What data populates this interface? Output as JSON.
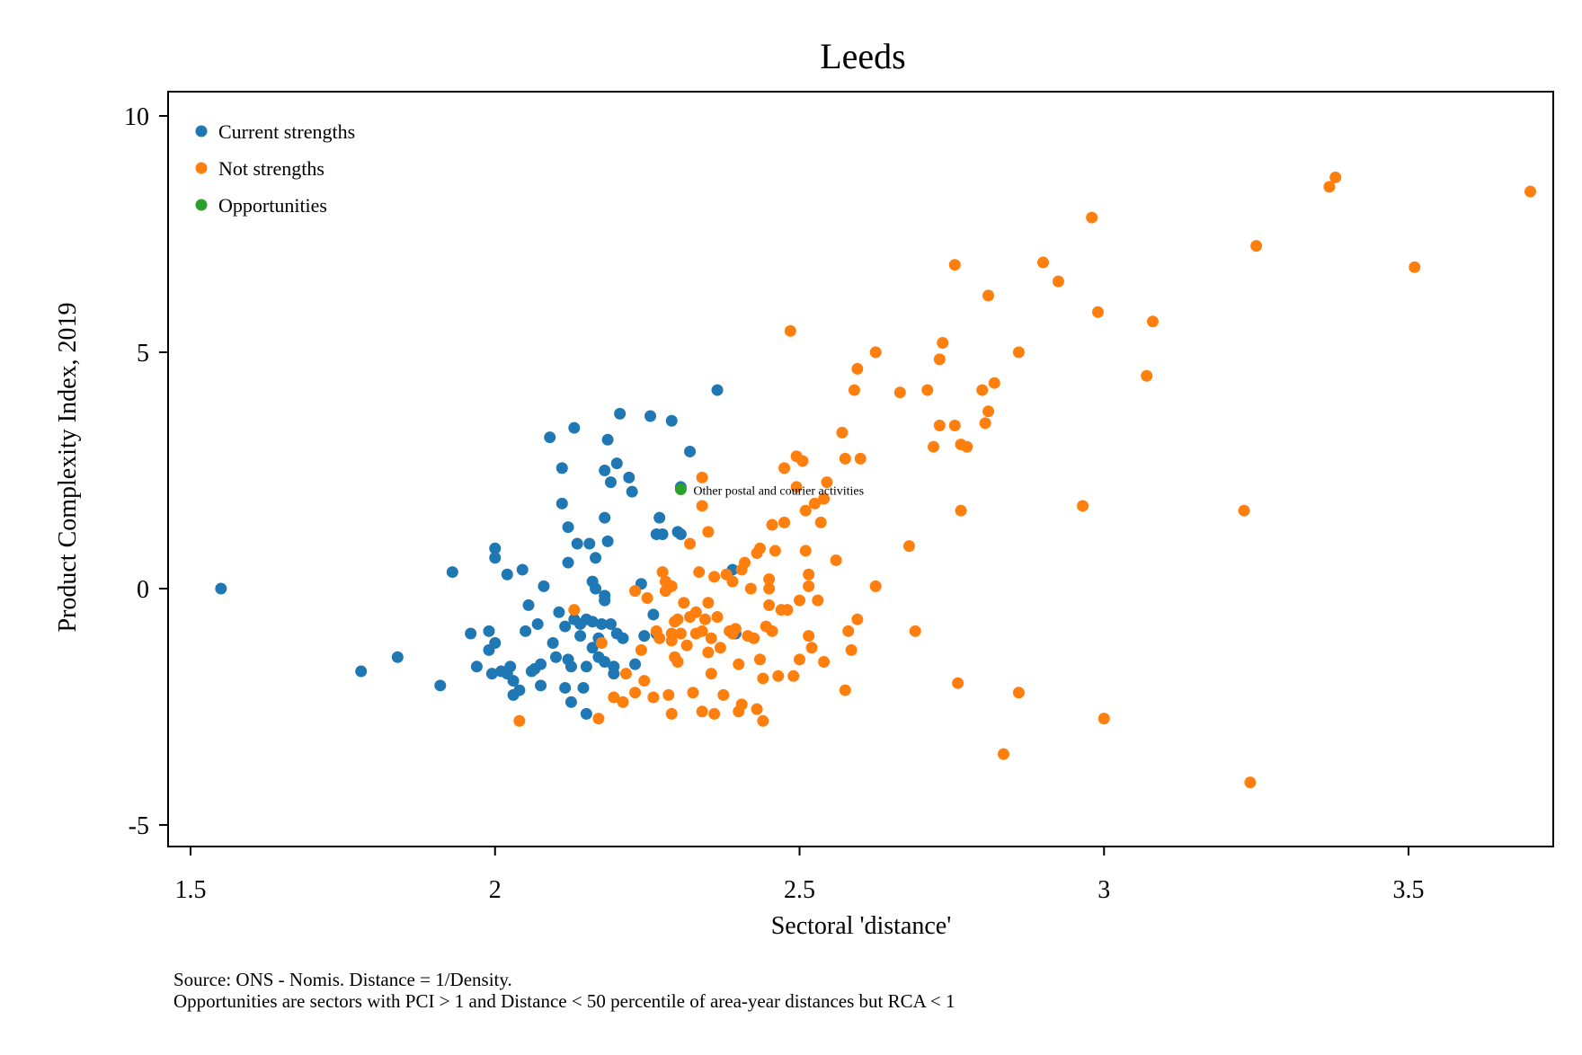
{
  "chart_data": {
    "type": "scatter",
    "title": "Leeds",
    "xlabel": "Sectoral 'distance'",
    "ylabel": "Product Complexity Index, 2019",
    "xlim": [
      1.43,
      3.72
    ],
    "ylim": [
      -5.5,
      10.5
    ],
    "xticks": [
      1.5,
      2,
      2.5,
      3,
      3.5
    ],
    "xtick_labels": [
      "1.5",
      "2",
      "2.5",
      "3",
      "3.5"
    ],
    "yticks": [
      -5,
      0,
      5,
      10
    ],
    "ytick_labels": [
      "-5",
      "0",
      "5",
      "10"
    ],
    "grid": false,
    "legend_position": "top-left",
    "annotation": {
      "text": "Other postal and courier activities",
      "x": 2.305,
      "y": 2.1
    },
    "series": [
      {
        "name": "Current strengths",
        "color": "#1f77b4",
        "points": [
          [
            1.55,
            0.0
          ],
          [
            1.78,
            -1.75
          ],
          [
            1.84,
            -1.45
          ],
          [
            1.91,
            -2.05
          ],
          [
            1.93,
            0.35
          ],
          [
            1.96,
            -0.95
          ],
          [
            1.97,
            -1.65
          ],
          [
            1.99,
            -0.9
          ],
          [
            1.99,
            -1.3
          ],
          [
            1.995,
            -1.8
          ],
          [
            2.0,
            0.85
          ],
          [
            2.0,
            0.65
          ],
          [
            2.0,
            -1.15
          ],
          [
            2.01,
            -1.75
          ],
          [
            2.02,
            0.3
          ],
          [
            2.02,
            -1.8
          ],
          [
            2.025,
            -1.65
          ],
          [
            2.03,
            -1.95
          ],
          [
            2.03,
            -2.25
          ],
          [
            2.04,
            -2.15
          ],
          [
            2.045,
            0.4
          ],
          [
            2.05,
            -0.9
          ],
          [
            2.055,
            -0.35
          ],
          [
            2.06,
            -1.75
          ],
          [
            2.065,
            -1.7
          ],
          [
            2.07,
            -0.75
          ],
          [
            2.075,
            -1.6
          ],
          [
            2.075,
            -2.05
          ],
          [
            2.08,
            0.05
          ],
          [
            2.09,
            3.2
          ],
          [
            2.095,
            -1.15
          ],
          [
            2.1,
            -1.45
          ],
          [
            2.105,
            -0.5
          ],
          [
            2.11,
            2.55
          ],
          [
            2.11,
            1.8
          ],
          [
            2.115,
            -0.8
          ],
          [
            2.115,
            -2.1
          ],
          [
            2.12,
            0.55
          ],
          [
            2.12,
            1.3
          ],
          [
            2.12,
            -1.5
          ],
          [
            2.125,
            -1.65
          ],
          [
            2.125,
            -2.4
          ],
          [
            2.13,
            3.4
          ],
          [
            2.13,
            -0.65
          ],
          [
            2.135,
            0.95
          ],
          [
            2.14,
            -0.75
          ],
          [
            2.14,
            -1.0
          ],
          [
            2.145,
            -2.1
          ],
          [
            2.15,
            -0.65
          ],
          [
            2.15,
            -1.65
          ],
          [
            2.15,
            -2.65
          ],
          [
            2.155,
            0.95
          ],
          [
            2.16,
            0.15
          ],
          [
            2.16,
            -0.7
          ],
          [
            2.16,
            -1.25
          ],
          [
            2.165,
            0.0
          ],
          [
            2.165,
            0.65
          ],
          [
            2.17,
            -1.05
          ],
          [
            2.17,
            -1.45
          ],
          [
            2.175,
            -0.75
          ],
          [
            2.18,
            1.5
          ],
          [
            2.18,
            -0.15
          ],
          [
            2.18,
            -0.25
          ],
          [
            2.18,
            -1.55
          ],
          [
            2.18,
            2.5
          ],
          [
            2.185,
            1.0
          ],
          [
            2.185,
            3.15
          ],
          [
            2.19,
            2.25
          ],
          [
            2.19,
            -0.75
          ],
          [
            2.195,
            -1.65
          ],
          [
            2.195,
            -1.8
          ],
          [
            2.2,
            2.65
          ],
          [
            2.2,
            -0.95
          ],
          [
            2.205,
            3.7
          ],
          [
            2.21,
            -1.05
          ],
          [
            2.22,
            2.35
          ],
          [
            2.225,
            2.05
          ],
          [
            2.23,
            -1.6
          ],
          [
            2.24,
            0.1
          ],
          [
            2.245,
            -1.0
          ],
          [
            2.255,
            3.65
          ],
          [
            2.26,
            -0.55
          ],
          [
            2.265,
            -0.95
          ],
          [
            2.265,
            1.15
          ],
          [
            2.27,
            1.5
          ],
          [
            2.275,
            1.15
          ],
          [
            2.29,
            3.55
          ],
          [
            2.3,
            1.2
          ],
          [
            2.305,
            1.15
          ],
          [
            2.305,
            2.15
          ],
          [
            2.32,
            2.9
          ],
          [
            2.365,
            4.2
          ],
          [
            2.39,
            0.4
          ],
          [
            2.395,
            -0.95
          ]
        ]
      },
      {
        "name": "Not strengths",
        "color": "#ff7f0e",
        "points": [
          [
            2.04,
            -2.8
          ],
          [
            2.13,
            -0.45
          ],
          [
            2.17,
            -2.75
          ],
          [
            2.175,
            -1.15
          ],
          [
            2.195,
            -2.3
          ],
          [
            2.21,
            -2.4
          ],
          [
            2.215,
            -1.8
          ],
          [
            2.23,
            -0.05
          ],
          [
            2.23,
            -2.2
          ],
          [
            2.24,
            -1.3
          ],
          [
            2.245,
            -1.95
          ],
          [
            2.25,
            -0.2
          ],
          [
            2.26,
            -2.3
          ],
          [
            2.265,
            -0.9
          ],
          [
            2.27,
            -1.05
          ],
          [
            2.275,
            0.35
          ],
          [
            2.28,
            0.15
          ],
          [
            2.28,
            -0.05
          ],
          [
            2.285,
            -2.25
          ],
          [
            2.29,
            0.05
          ],
          [
            2.29,
            -0.95
          ],
          [
            2.29,
            -1.1
          ],
          [
            2.29,
            -2.65
          ],
          [
            2.295,
            -0.7
          ],
          [
            2.295,
            -1.45
          ],
          [
            2.3,
            -1.55
          ],
          [
            2.3,
            -0.65
          ],
          [
            2.305,
            -0.95
          ],
          [
            2.31,
            -0.3
          ],
          [
            2.315,
            -1.2
          ],
          [
            2.32,
            0.95
          ],
          [
            2.32,
            -0.6
          ],
          [
            2.325,
            -2.2
          ],
          [
            2.33,
            -0.5
          ],
          [
            2.33,
            -0.95
          ],
          [
            2.335,
            0.35
          ],
          [
            2.34,
            2.35
          ],
          [
            2.34,
            1.75
          ],
          [
            2.34,
            -0.9
          ],
          [
            2.34,
            -2.6
          ],
          [
            2.345,
            -0.65
          ],
          [
            2.35,
            1.2
          ],
          [
            2.35,
            -0.3
          ],
          [
            2.35,
            -1.35
          ],
          [
            2.355,
            -1.05
          ],
          [
            2.355,
            -1.8
          ],
          [
            2.36,
            0.25
          ],
          [
            2.36,
            -2.65
          ],
          [
            2.365,
            -0.6
          ],
          [
            2.37,
            -1.25
          ],
          [
            2.375,
            -2.25
          ],
          [
            2.38,
            0.3
          ],
          [
            2.385,
            -0.9
          ],
          [
            2.39,
            0.15
          ],
          [
            2.39,
            -0.95
          ],
          [
            2.395,
            -0.85
          ],
          [
            2.4,
            -2.6
          ],
          [
            2.4,
            -1.6
          ],
          [
            2.405,
            0.4
          ],
          [
            2.405,
            -2.45
          ],
          [
            2.41,
            0.55
          ],
          [
            2.415,
            -1.0
          ],
          [
            2.42,
            0.0
          ],
          [
            2.425,
            -1.05
          ],
          [
            2.43,
            -2.55
          ],
          [
            2.43,
            0.75
          ],
          [
            2.435,
            0.85
          ],
          [
            2.435,
            -1.5
          ],
          [
            2.44,
            -1.9
          ],
          [
            2.44,
            -2.8
          ],
          [
            2.445,
            -0.8
          ],
          [
            2.45,
            0.2
          ],
          [
            2.45,
            -0.35
          ],
          [
            2.45,
            0.0
          ],
          [
            2.455,
            -0.9
          ],
          [
            2.455,
            1.35
          ],
          [
            2.46,
            0.8
          ],
          [
            2.465,
            -1.85
          ],
          [
            2.47,
            -0.45
          ],
          [
            2.475,
            1.4
          ],
          [
            2.475,
            2.55
          ],
          [
            2.48,
            -0.45
          ],
          [
            2.485,
            5.45
          ],
          [
            2.49,
            -1.85
          ],
          [
            2.495,
            2.8
          ],
          [
            2.495,
            2.15
          ],
          [
            2.5,
            -0.25
          ],
          [
            2.5,
            -1.5
          ],
          [
            2.505,
            2.7
          ],
          [
            2.51,
            1.65
          ],
          [
            2.51,
            0.8
          ],
          [
            2.515,
            -1.0
          ],
          [
            2.515,
            0.3
          ],
          [
            2.515,
            0.05
          ],
          [
            2.52,
            -1.25
          ],
          [
            2.525,
            1.8
          ],
          [
            2.53,
            -0.25
          ],
          [
            2.535,
            1.4
          ],
          [
            2.54,
            1.9
          ],
          [
            2.54,
            -1.55
          ],
          [
            2.545,
            2.25
          ],
          [
            2.56,
            0.6
          ],
          [
            2.57,
            3.3
          ],
          [
            2.575,
            2.75
          ],
          [
            2.575,
            -2.15
          ],
          [
            2.58,
            -0.9
          ],
          [
            2.585,
            -1.3
          ],
          [
            2.59,
            4.2
          ],
          [
            2.595,
            4.65
          ],
          [
            2.595,
            -0.65
          ],
          [
            2.6,
            2.75
          ],
          [
            2.625,
            5.0
          ],
          [
            2.625,
            0.05
          ],
          [
            2.665,
            4.15
          ],
          [
            2.68,
            0.9
          ],
          [
            2.69,
            -0.9
          ],
          [
            2.71,
            4.2
          ],
          [
            2.72,
            3.0
          ],
          [
            2.73,
            3.45
          ],
          [
            2.73,
            4.85
          ],
          [
            2.735,
            5.2
          ],
          [
            2.755,
            6.85
          ],
          [
            2.755,
            3.45
          ],
          [
            2.76,
            -2.0
          ],
          [
            2.765,
            3.05
          ],
          [
            2.765,
            1.65
          ],
          [
            2.775,
            3.0
          ],
          [
            2.8,
            4.2
          ],
          [
            2.805,
            3.5
          ],
          [
            2.81,
            3.75
          ],
          [
            2.81,
            6.2
          ],
          [
            2.82,
            4.35
          ],
          [
            2.835,
            -3.5
          ],
          [
            2.86,
            -2.2
          ],
          [
            2.86,
            5.0
          ],
          [
            2.9,
            6.9
          ],
          [
            2.925,
            6.5
          ],
          [
            2.965,
            1.75
          ],
          [
            2.98,
            7.85
          ],
          [
            2.99,
            5.85
          ],
          [
            3.0,
            -2.75
          ],
          [
            3.07,
            4.5
          ],
          [
            3.08,
            5.65
          ],
          [
            3.23,
            1.65
          ],
          [
            3.24,
            -4.1
          ],
          [
            3.25,
            7.25
          ],
          [
            3.37,
            8.5
          ],
          [
            3.38,
            8.7
          ],
          [
            3.51,
            6.8
          ],
          [
            3.7,
            8.4
          ]
        ]
      },
      {
        "name": "Opportunities",
        "color": "#2ca02c",
        "points": [
          [
            2.305,
            2.1
          ]
        ]
      }
    ]
  },
  "notes": {
    "line1": "Source: ONS - Nomis. Distance = 1/Density.",
    "line2": "Opportunities are sectors with PCI > 1 and Distance < 50 percentile of area-year distances but RCA < 1"
  }
}
